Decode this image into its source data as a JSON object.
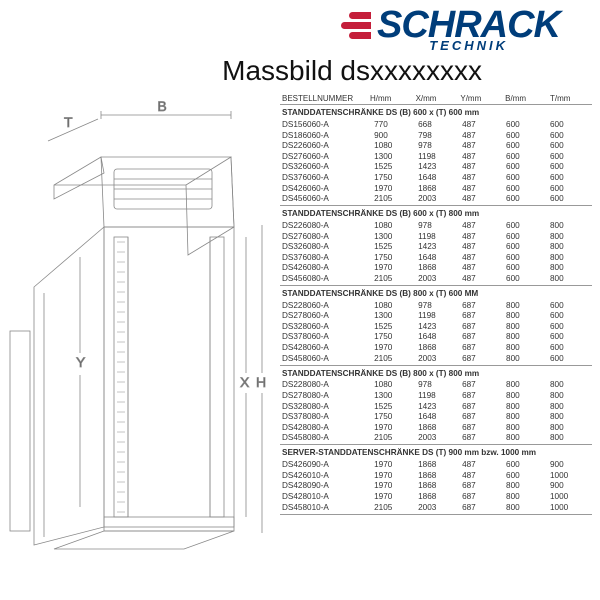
{
  "brand": {
    "name": "SCHRACK",
    "sub": "TECHNIK",
    "color_primary": "#003d7a",
    "color_accent": "#c41e3a"
  },
  "title": "Massbild dsxxxxxxxx",
  "diagram": {
    "labels": {
      "B": "B",
      "T": "T",
      "Y": "Y",
      "X": "X",
      "H": "H"
    },
    "stroke": "#888888"
  },
  "table_headers": [
    "BESTELLNUMMER",
    "H/mm",
    "X/mm",
    "Y/mm",
    "B/mm",
    "T/mm"
  ],
  "sections": [
    {
      "title": "STANDDATENSCHRÄNKE DS (B) 600 x (T) 600 mm",
      "rows": [
        [
          "DS156060-A",
          "770",
          "668",
          "487",
          "600",
          "600"
        ],
        [
          "DS186060-A",
          "900",
          "798",
          "487",
          "600",
          "600"
        ],
        [
          "DS226060-A",
          "1080",
          "978",
          "487",
          "600",
          "600"
        ],
        [
          "DS276060-A",
          "1300",
          "1198",
          "487",
          "600",
          "600"
        ],
        [
          "DS326060-A",
          "1525",
          "1423",
          "487",
          "600",
          "600"
        ],
        [
          "DS376060-A",
          "1750",
          "1648",
          "487",
          "600",
          "600"
        ],
        [
          "DS426060-A",
          "1970",
          "1868",
          "487",
          "600",
          "600"
        ],
        [
          "DS456060-A",
          "2105",
          "2003",
          "487",
          "600",
          "600"
        ]
      ]
    },
    {
      "title": "STANDDATENSCHRÄNKE DS (B) 600 x (T) 800 mm",
      "rows": [
        [
          "DS226080-A",
          "1080",
          "978",
          "487",
          "600",
          "800"
        ],
        [
          "DS276080-A",
          "1300",
          "1198",
          "487",
          "600",
          "800"
        ],
        [
          "DS326080-A",
          "1525",
          "1423",
          "487",
          "600",
          "800"
        ],
        [
          "DS376080-A",
          "1750",
          "1648",
          "487",
          "600",
          "800"
        ],
        [
          "DS426080-A",
          "1970",
          "1868",
          "487",
          "600",
          "800"
        ],
        [
          "DS456080-A",
          "2105",
          "2003",
          "487",
          "600",
          "800"
        ]
      ]
    },
    {
      "title": "STANDDATENSCHRÄNKE DS (B) 800 x (T) 600 MM",
      "rows": [
        [
          "DS228060-A",
          "1080",
          "978",
          "687",
          "800",
          "600"
        ],
        [
          "DS278060-A",
          "1300",
          "1198",
          "687",
          "800",
          "600"
        ],
        [
          "DS328060-A",
          "1525",
          "1423",
          "687",
          "800",
          "600"
        ],
        [
          "DS378060-A",
          "1750",
          "1648",
          "687",
          "800",
          "600"
        ],
        [
          "DS428060-A",
          "1970",
          "1868",
          "687",
          "800",
          "600"
        ],
        [
          "DS458060-A",
          "2105",
          "2003",
          "687",
          "800",
          "600"
        ]
      ]
    },
    {
      "title": "STANDDATENSCHRÄNKE DS (B) 800 x (T) 800 mm",
      "rows": [
        [
          "DS228080-A",
          "1080",
          "978",
          "687",
          "800",
          "800"
        ],
        [
          "DS278080-A",
          "1300",
          "1198",
          "687",
          "800",
          "800"
        ],
        [
          "DS328080-A",
          "1525",
          "1423",
          "687",
          "800",
          "800"
        ],
        [
          "DS378080-A",
          "1750",
          "1648",
          "687",
          "800",
          "800"
        ],
        [
          "DS428080-A",
          "1970",
          "1868",
          "687",
          "800",
          "800"
        ],
        [
          "DS458080-A",
          "2105",
          "2003",
          "687",
          "800",
          "800"
        ]
      ]
    },
    {
      "title": "SERVER-STANDDATENSCHRÄNKE DS (T) 900 mm bzw. 1000 mm",
      "rows": [
        [
          "DS426090-A",
          "1970",
          "1868",
          "487",
          "600",
          "900"
        ],
        [
          "DS426010-A",
          "1970",
          "1868",
          "487",
          "600",
          "1000"
        ],
        [
          "DS428090-A",
          "1970",
          "1868",
          "687",
          "800",
          "900"
        ],
        [
          "DS428010-A",
          "1970",
          "1868",
          "687",
          "800",
          "1000"
        ],
        [
          "DS458010-A",
          "2105",
          "2003",
          "687",
          "800",
          "1000"
        ]
      ]
    }
  ]
}
